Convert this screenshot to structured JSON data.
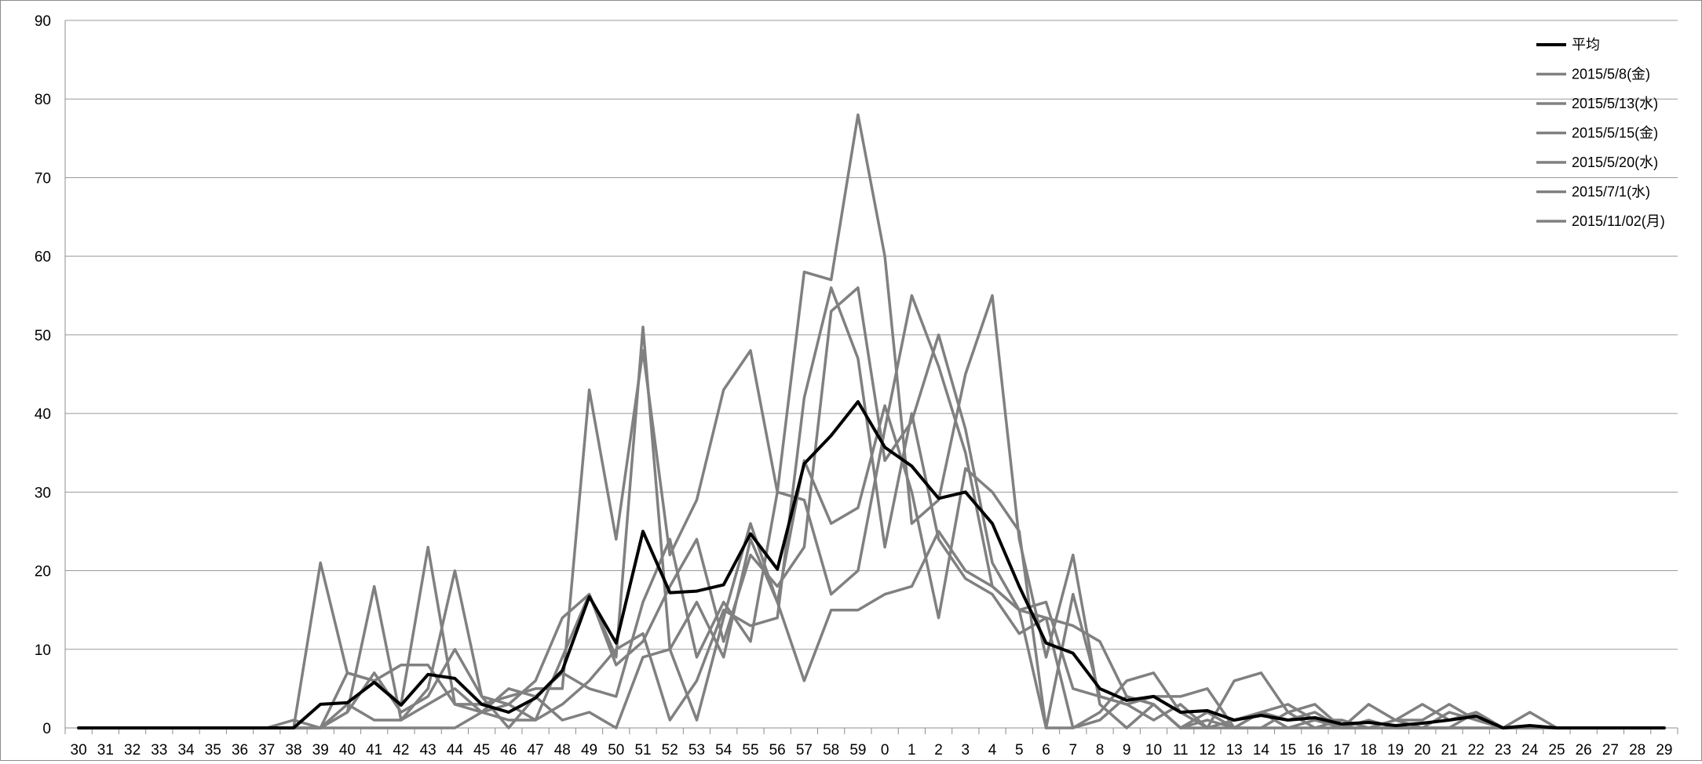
{
  "chart_data": {
    "type": "line",
    "x": [
      "30",
      "31",
      "32",
      "33",
      "34",
      "35",
      "36",
      "37",
      "38",
      "39",
      "40",
      "41",
      "42",
      "43",
      "44",
      "45",
      "46",
      "47",
      "48",
      "49",
      "50",
      "51",
      "52",
      "53",
      "54",
      "55",
      "56",
      "57",
      "58",
      "59",
      "0",
      "1",
      "2",
      "3",
      "4",
      "5",
      "6",
      "7",
      "8",
      "9",
      "10",
      "11",
      "12",
      "13",
      "14",
      "15",
      "16",
      "17",
      "18",
      "19",
      "20",
      "21",
      "22",
      "23",
      "24",
      "25",
      "26",
      "27",
      "28",
      "29"
    ],
    "ylim": [
      0,
      90
    ],
    "yticks": [
      0,
      10,
      20,
      30,
      40,
      50,
      60,
      70,
      80,
      90
    ],
    "grid": true,
    "legend_position": "top-right",
    "series": [
      {
        "name": "平均",
        "color": "#000000",
        "values": [
          0,
          0,
          0,
          0,
          0,
          0,
          0,
          0,
          0,
          3,
          3.2,
          5.8,
          2.9,
          6.8,
          6.3,
          3,
          2,
          3.8,
          7.3,
          16.7,
          10.8,
          25,
          17.2,
          17.4,
          18.2,
          24.7,
          20.2,
          33.6,
          37.2,
          41.5,
          35.7,
          33.3,
          29.2,
          30,
          26,
          18,
          10.8,
          9.5,
          5,
          3.5,
          4,
          2,
          2.2,
          1,
          1.6,
          1,
          1.3,
          0.5,
          0.7,
          0.3,
          0.6,
          1,
          1.5,
          0,
          0.3,
          0,
          0,
          0,
          0,
          0
        ]
      },
      {
        "name": "2015/5/8(金)",
        "color": "#808080",
        "values": [
          0,
          0,
          0,
          0,
          0,
          0,
          0,
          0,
          0,
          21,
          7,
          6,
          3,
          23,
          3,
          3,
          4,
          5,
          5,
          43,
          24,
          48,
          22,
          29,
          43,
          48,
          30,
          29,
          17,
          20,
          38,
          55,
          46,
          35,
          18,
          15,
          16,
          5,
          4,
          3,
          4,
          4,
          5,
          0,
          2,
          1,
          2,
          0,
          3,
          1,
          3,
          1,
          2,
          0,
          2,
          0,
          0,
          0,
          0,
          0
        ]
      },
      {
        "name": "2015/5/13(水)",
        "color": "#808080",
        "values": [
          0,
          0,
          0,
          0,
          0,
          0,
          0,
          0,
          0,
          0,
          2,
          18,
          1,
          5,
          20,
          4,
          0,
          4,
          7,
          5,
          4,
          16,
          24,
          9,
          16,
          11,
          30,
          58,
          57,
          78,
          60,
          26,
          29,
          45,
          55,
          24,
          9,
          22,
          3,
          0,
          3,
          0,
          2,
          0,
          2,
          0,
          1,
          0,
          1,
          0,
          0,
          2,
          1,
          0,
          0,
          0,
          0,
          0,
          0,
          0
        ]
      },
      {
        "name": "2015/5/15(金)",
        "color": "#808080",
        "values": [
          0,
          0,
          0,
          0,
          0,
          0,
          0,
          0,
          1,
          0,
          0,
          0,
          0,
          0,
          0,
          2,
          1,
          1,
          3,
          6,
          10,
          12,
          1,
          6,
          15,
          13,
          14,
          42,
          56,
          47,
          23,
          40,
          24,
          19,
          17,
          12,
          14,
          0,
          1,
          4,
          3,
          0,
          1,
          0,
          0,
          2,
          3,
          0,
          0,
          1,
          0,
          0,
          0,
          0,
          0,
          0,
          0,
          0,
          0,
          0
        ]
      },
      {
        "name": "2015/5/20(水)",
        "color": "#808080",
        "values": [
          0,
          0,
          0,
          0,
          0,
          0,
          0,
          0,
          0,
          0,
          3,
          1,
          1,
          3,
          5,
          2,
          3,
          6,
          14,
          17,
          8,
          11,
          18,
          24,
          11,
          22,
          18,
          23,
          53,
          56,
          34,
          39,
          50,
          38,
          21,
          15,
          14,
          13,
          11,
          4,
          3,
          0,
          0,
          1,
          2,
          3,
          1,
          1,
          0,
          0,
          0,
          0,
          2,
          0,
          0,
          0,
          0,
          0,
          0,
          0
        ]
      },
      {
        "name": "2015/7/1(水)",
        "color": "#808080",
        "values": [
          0,
          0,
          0,
          0,
          0,
          0,
          0,
          0,
          0,
          0,
          2,
          7,
          2,
          4,
          10,
          4,
          3,
          1,
          9,
          17,
          9,
          51,
          10,
          1,
          14,
          26,
          16,
          6,
          15,
          15,
          17,
          18,
          25,
          20,
          18,
          15,
          0,
          0,
          2,
          6,
          7,
          2,
          0,
          0,
          0,
          0,
          0,
          0,
          0,
          0,
          0,
          0,
          0,
          0,
          0,
          0,
          0,
          0,
          0,
          0
        ]
      },
      {
        "name": "2015/11/02(月)",
        "color": "#808080",
        "values": [
          0,
          0,
          0,
          0,
          0,
          0,
          0,
          0,
          0,
          0,
          7,
          6,
          8,
          8,
          3,
          2,
          5,
          4,
          1,
          2,
          0,
          9,
          10,
          16,
          9,
          24,
          16,
          34,
          26,
          28,
          41,
          30,
          14,
          33,
          30,
          25,
          0,
          17,
          4,
          3,
          1,
          3,
          0,
          6,
          7,
          2,
          0,
          1,
          0,
          1,
          1,
          3,
          1,
          0,
          0,
          0,
          0,
          0,
          0,
          0
        ]
      }
    ]
  }
}
